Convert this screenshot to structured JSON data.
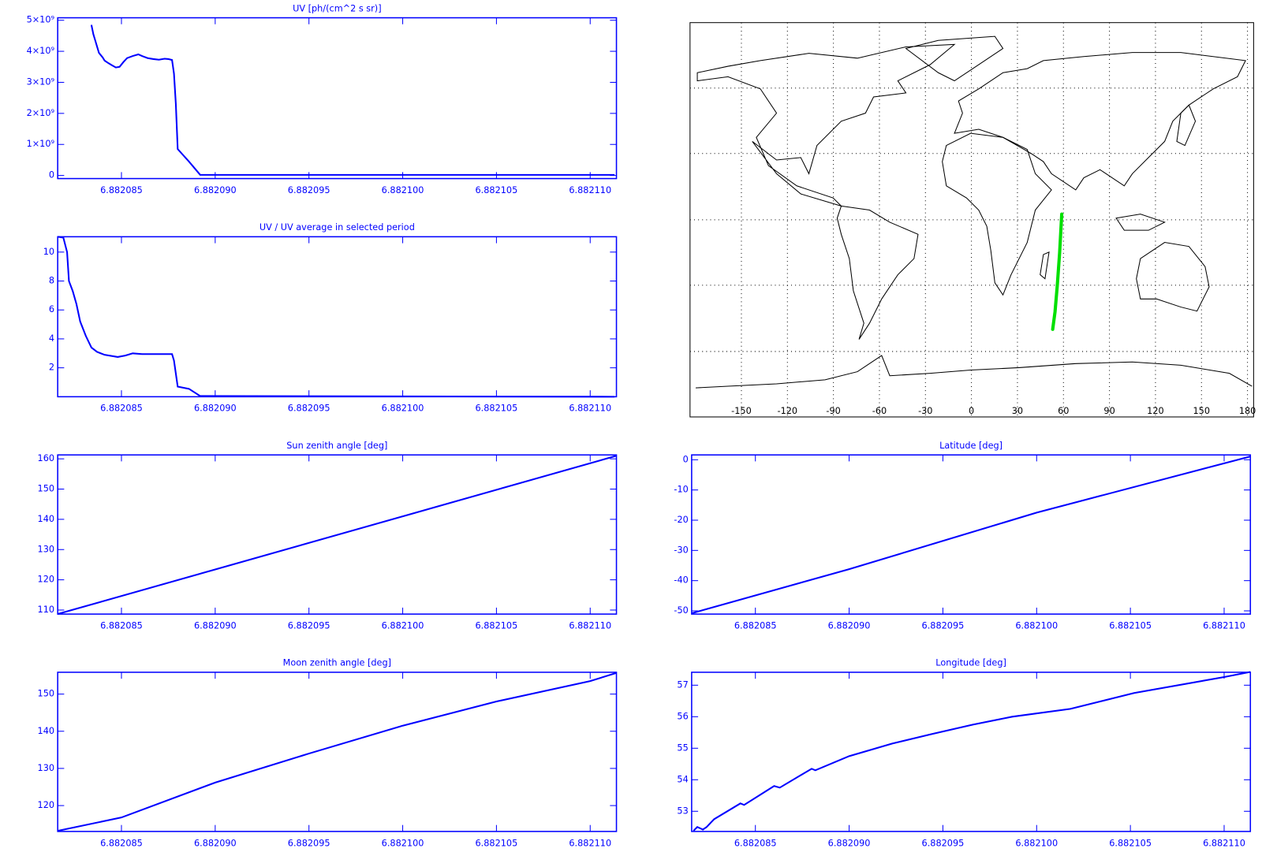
{
  "chart_data": [
    {
      "type": "line",
      "title": "UV [ph/(cm^2 s sr)]",
      "color": "#0000ff",
      "x": [
        6.8820834,
        6.8820835,
        6.8820836,
        6.8820837,
        6.8820838,
        6.882084,
        6.8820841,
        6.8820843,
        6.8820845,
        6.8820847,
        6.8820849,
        6.8820851,
        6.8820853,
        6.8820856,
        6.8820859,
        6.8820861,
        6.8820864,
        6.8820867,
        6.882087,
        6.8820873,
        6.8820875,
        6.8820877,
        6.8820878,
        6.8820879,
        6.882088,
        6.8820886,
        6.8820892,
        6.8821113
      ],
      "values": [
        4850000000,
        4550000000,
        4350000000,
        4150000000,
        3950000000,
        3800000000,
        3700000000,
        3620000000,
        3550000000,
        3480000000,
        3500000000,
        3650000000,
        3780000000,
        3850000000,
        3900000000,
        3850000000,
        3780000000,
        3750000000,
        3730000000,
        3760000000,
        3750000000,
        3720000000,
        3280000000,
        2300000000,
        850000000,
        450000000,
        20000000,
        20000000
      ],
      "xlim": [
        6.8820816,
        6.8821114
      ],
      "ylim": [
        -100000000,
        5080000000
      ],
      "xticks": [
        6.882085,
        {
          "value": 6.88209,
          "label": "6.882090"
        },
        6.882095,
        {
          "value": 6.8821,
          "label": "6.882100"
        },
        6.882105,
        {
          "value": 6.88211,
          "label": "6.882110"
        }
      ],
      "yticks": [
        0,
        {
          "value": 1000000000,
          "label": "1×10⁹"
        },
        {
          "value": 2000000000,
          "label": "2×10⁹"
        },
        {
          "value": 3000000000,
          "label": "3×10⁹"
        },
        {
          "value": 4000000000,
          "label": "4×10⁹"
        },
        {
          "value": 5000000000,
          "label": "5×10⁹"
        }
      ]
    },
    {
      "type": "line",
      "title": "UV / UV average in selected period",
      "color": "#0000ff",
      "x": [
        6.8820816,
        6.8820819,
        6.8820821,
        6.8820822,
        6.8820824,
        6.8820826,
        6.8820828,
        6.8820831,
        6.8820834,
        6.8820837,
        6.8820841,
        6.8820848,
        6.8820852,
        6.8820856,
        6.8820861,
        6.8820865,
        6.8820877,
        6.8820878,
        6.882088,
        6.8820886,
        6.8820892,
        6.8821113
      ],
      "values": [
        11.06,
        11.0,
        10,
        8,
        7.3,
        6.4,
        5.2,
        4.2,
        3.4,
        3.1,
        2.9,
        2.75,
        2.85,
        3.0,
        2.95,
        2.95,
        2.95,
        2.5,
        0.7,
        0.55,
        0.05,
        0.0
      ],
      "xlim": [
        6.8820816,
        6.8821114
      ],
      "ylim": [
        0,
        11.06
      ],
      "xticks": [
        6.882085,
        {
          "value": 6.88209,
          "label": "6.882090"
        },
        6.882095,
        {
          "value": 6.8821,
          "label": "6.882100"
        },
        6.882105,
        {
          "value": 6.88211,
          "label": "6.882110"
        }
      ],
      "yticks": [
        2,
        4,
        6,
        8,
        10
      ]
    },
    {
      "type": "map",
      "color": "#00e000",
      "x": [
        58.9,
        57.5,
        56,
        54.5,
        53
      ],
      "values": [
        2.6,
        -15,
        -30,
        -42,
        -50
      ],
      "xlim": [
        -183.5,
        184
      ],
      "ylim": [
        -90,
        90
      ],
      "xticks": [
        -150,
        -120,
        -90,
        -60,
        -30,
        0,
        30,
        60,
        90,
        120,
        150,
        180
      ]
    },
    {
      "type": "line",
      "title": "Sun zenith angle [deg]",
      "color": "#0000ff",
      "x": [
        6.8820816,
        6.88209,
        6.8821,
        6.8821114
      ],
      "values": [
        108.7,
        123.4,
        141.0,
        161.0
      ],
      "xlim": [
        6.8820816,
        6.8821114
      ],
      "ylim": [
        108.66,
        161.3
      ],
      "xticks": [
        6.882085,
        {
          "value": 6.88209,
          "label": "6.882090"
        },
        6.882095,
        {
          "value": 6.8821,
          "label": "6.882100"
        },
        6.882105,
        {
          "value": 6.88211,
          "label": "6.882110"
        }
      ],
      "yticks": [
        110,
        120,
        130,
        140,
        150,
        160
      ]
    },
    {
      "type": "line",
      "title": "Latitude [deg]",
      "color": "#0000ff",
      "x": [
        6.8820816,
        6.88209,
        6.8821,
        6.8821114
      ],
      "values": [
        -50.8,
        -36.2,
        -17.5,
        1.1
      ],
      "xlim": [
        6.8820816,
        6.8821114
      ],
      "ylim": [
        -51.07,
        1.6
      ],
      "xticks": [
        6.882085,
        {
          "value": 6.88209,
          "label": "6.882090"
        },
        6.882095,
        {
          "value": 6.8821,
          "label": "6.882100"
        },
        6.882105,
        {
          "value": 6.88211,
          "label": "6.882110"
        }
      ],
      "yticks": [
        0,
        -10,
        -20,
        -30,
        -40,
        -50
      ]
    },
    {
      "type": "line",
      "title": "Moon zenith angle [deg]",
      "color": "#0000ff",
      "x": [
        6.8820816,
        6.882085,
        6.88209,
        6.882095,
        6.8821,
        6.882105,
        6.88211,
        6.8821114
      ],
      "values": [
        113.2,
        116.8,
        126.2,
        134.0,
        141.5,
        148.0,
        153.5,
        155.7
      ],
      "xlim": [
        6.8820816,
        6.8821114
      ],
      "ylim": [
        113.04,
        155.87
      ],
      "xticks": [
        6.882085,
        {
          "value": 6.88209,
          "label": "6.882090"
        },
        6.882095,
        {
          "value": 6.8821,
          "label": "6.882100"
        },
        6.882105,
        {
          "value": 6.88211,
          "label": "6.882110"
        }
      ],
      "yticks": [
        120,
        130,
        140,
        150
      ]
    },
    {
      "type": "line",
      "title": "Longitude [deg]",
      "color": "#0000ff",
      "x": [
        6.8820817,
        6.8820819,
        6.8820822,
        6.8820824,
        6.8820828,
        6.8820842,
        6.8820844,
        6.882086,
        6.8820863,
        6.882088,
        6.8820882,
        6.88209,
        6.8820923,
        6.8820944,
        6.8820966,
        6.8820987,
        6.8821018,
        6.8821052,
        6.88211,
        6.8821114
      ],
      "values": [
        52.38,
        52.5,
        52.42,
        52.5,
        52.75,
        53.25,
        53.2,
        53.8,
        53.75,
        54.35,
        54.3,
        54.75,
        55.15,
        55.45,
        55.75,
        56.0,
        56.25,
        56.75,
        57.26,
        57.42
      ],
      "xlim": [
        6.8820816,
        6.8821114
      ],
      "ylim": [
        52.36,
        57.41
      ],
      "xticks": [
        6.882085,
        {
          "value": 6.88209,
          "label": "6.882090"
        },
        6.882095,
        {
          "value": 6.8821,
          "label": "6.882100"
        },
        6.882105,
        {
          "value": 6.88211,
          "label": "6.882110"
        }
      ],
      "yticks": [
        53,
        54,
        55,
        56,
        57
      ]
    }
  ]
}
